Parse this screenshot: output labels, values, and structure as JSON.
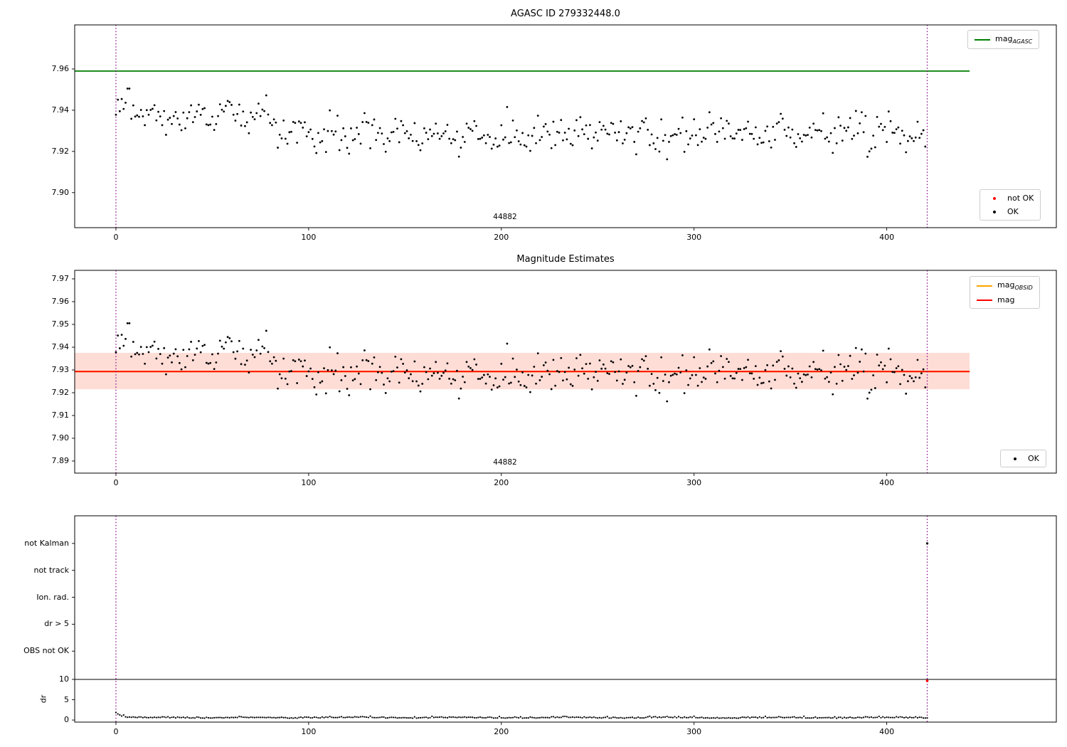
{
  "colors": {
    "agasc_line": "#007f00",
    "mag_line": "#ff0000",
    "obsid_line": "#ffa500",
    "band": "#ff6347",
    "vline": "#800080",
    "point": "#000000",
    "not_ok": "#ff0000",
    "axis": "#000000"
  },
  "chart_data": [
    {
      "type": "scatter",
      "title": "AGASC ID 279332448.0",
      "xlim": [
        -21.4,
        488
      ],
      "ylim": [
        7.883,
        7.9814
      ],
      "xticks": [
        0,
        100,
        200,
        300,
        400
      ],
      "yticks": [
        7.9,
        7.92,
        7.94,
        7.96
      ],
      "hline": {
        "value": 7.959,
        "span": [
          -21.4,
          443
        ],
        "label_prefix": "mag",
        "label_sub": "AGASC"
      },
      "vlines": [
        0,
        421
      ],
      "annotation": {
        "text": "44882",
        "x": 202
      },
      "legend_points": [
        {
          "label": "not OK",
          "color": "#ff0000"
        },
        {
          "label": "OK",
          "color": "#000000"
        }
      ],
      "points_spec": {
        "seed": 20240613,
        "n": 421,
        "base": 7.9285,
        "decay_amp": 0.016,
        "decay_tau": 30,
        "bump_amp": 0.009,
        "bump_x": 62,
        "bump_w": 380,
        "sin_amp": 0.0028,
        "sin_period": 18,
        "noise_sd": 0.0042,
        "ymin": 7.9115,
        "ymax": 7.9505
      }
    },
    {
      "type": "scatter",
      "title": "Magnitude Estimates",
      "xlim": [
        -21.4,
        488
      ],
      "ylim": [
        7.88469,
        7.97375
      ],
      "xticks": [
        0,
        100,
        200,
        300,
        400
      ],
      "yticks": [
        7.89,
        7.9,
        7.91,
        7.92,
        7.93,
        7.94,
        7.95,
        7.96,
        7.97
      ],
      "band": {
        "lo": 7.9215,
        "hi": 7.9375,
        "span": [
          -21.4,
          443
        ]
      },
      "hlines": [
        {
          "value": 7.9293,
          "color_key": "obsid_line",
          "label_prefix": "mag",
          "label_sub": "OBSID"
        },
        {
          "value": 7.9293,
          "color_key": "mag_line",
          "label": "mag"
        }
      ],
      "vlines": [
        0,
        421
      ],
      "annotation": {
        "text": "44882",
        "x": 202
      },
      "legend_ok": "OK",
      "points_ref": 0
    },
    {
      "type": "flags",
      "rows": [
        "not Kalman",
        "not track",
        "Ion. rad.",
        "dr > 5",
        "OBS not OK"
      ],
      "dr": {
        "label": "dr",
        "ticks": [
          10,
          5,
          0
        ],
        "hline": 10
      },
      "xlim": [
        -21.4,
        488
      ],
      "xticks": [
        0,
        100,
        200,
        300,
        400
      ],
      "vlines": [
        0,
        421
      ],
      "flag_points": [
        {
          "x": 421,
          "row": "not Kalman"
        }
      ],
      "dr_outliers": [
        {
          "x": 421,
          "value": 10
        }
      ],
      "dr_points_spec": {
        "seed": 424242,
        "n": 422,
        "base": 0.5,
        "noise_sd": 0.17,
        "start_amp": 1.35,
        "start_tau": 2.6,
        "wave_amp": 0.07,
        "wave_period": 55,
        "min": 0.08,
        "max": 2.4
      }
    }
  ]
}
